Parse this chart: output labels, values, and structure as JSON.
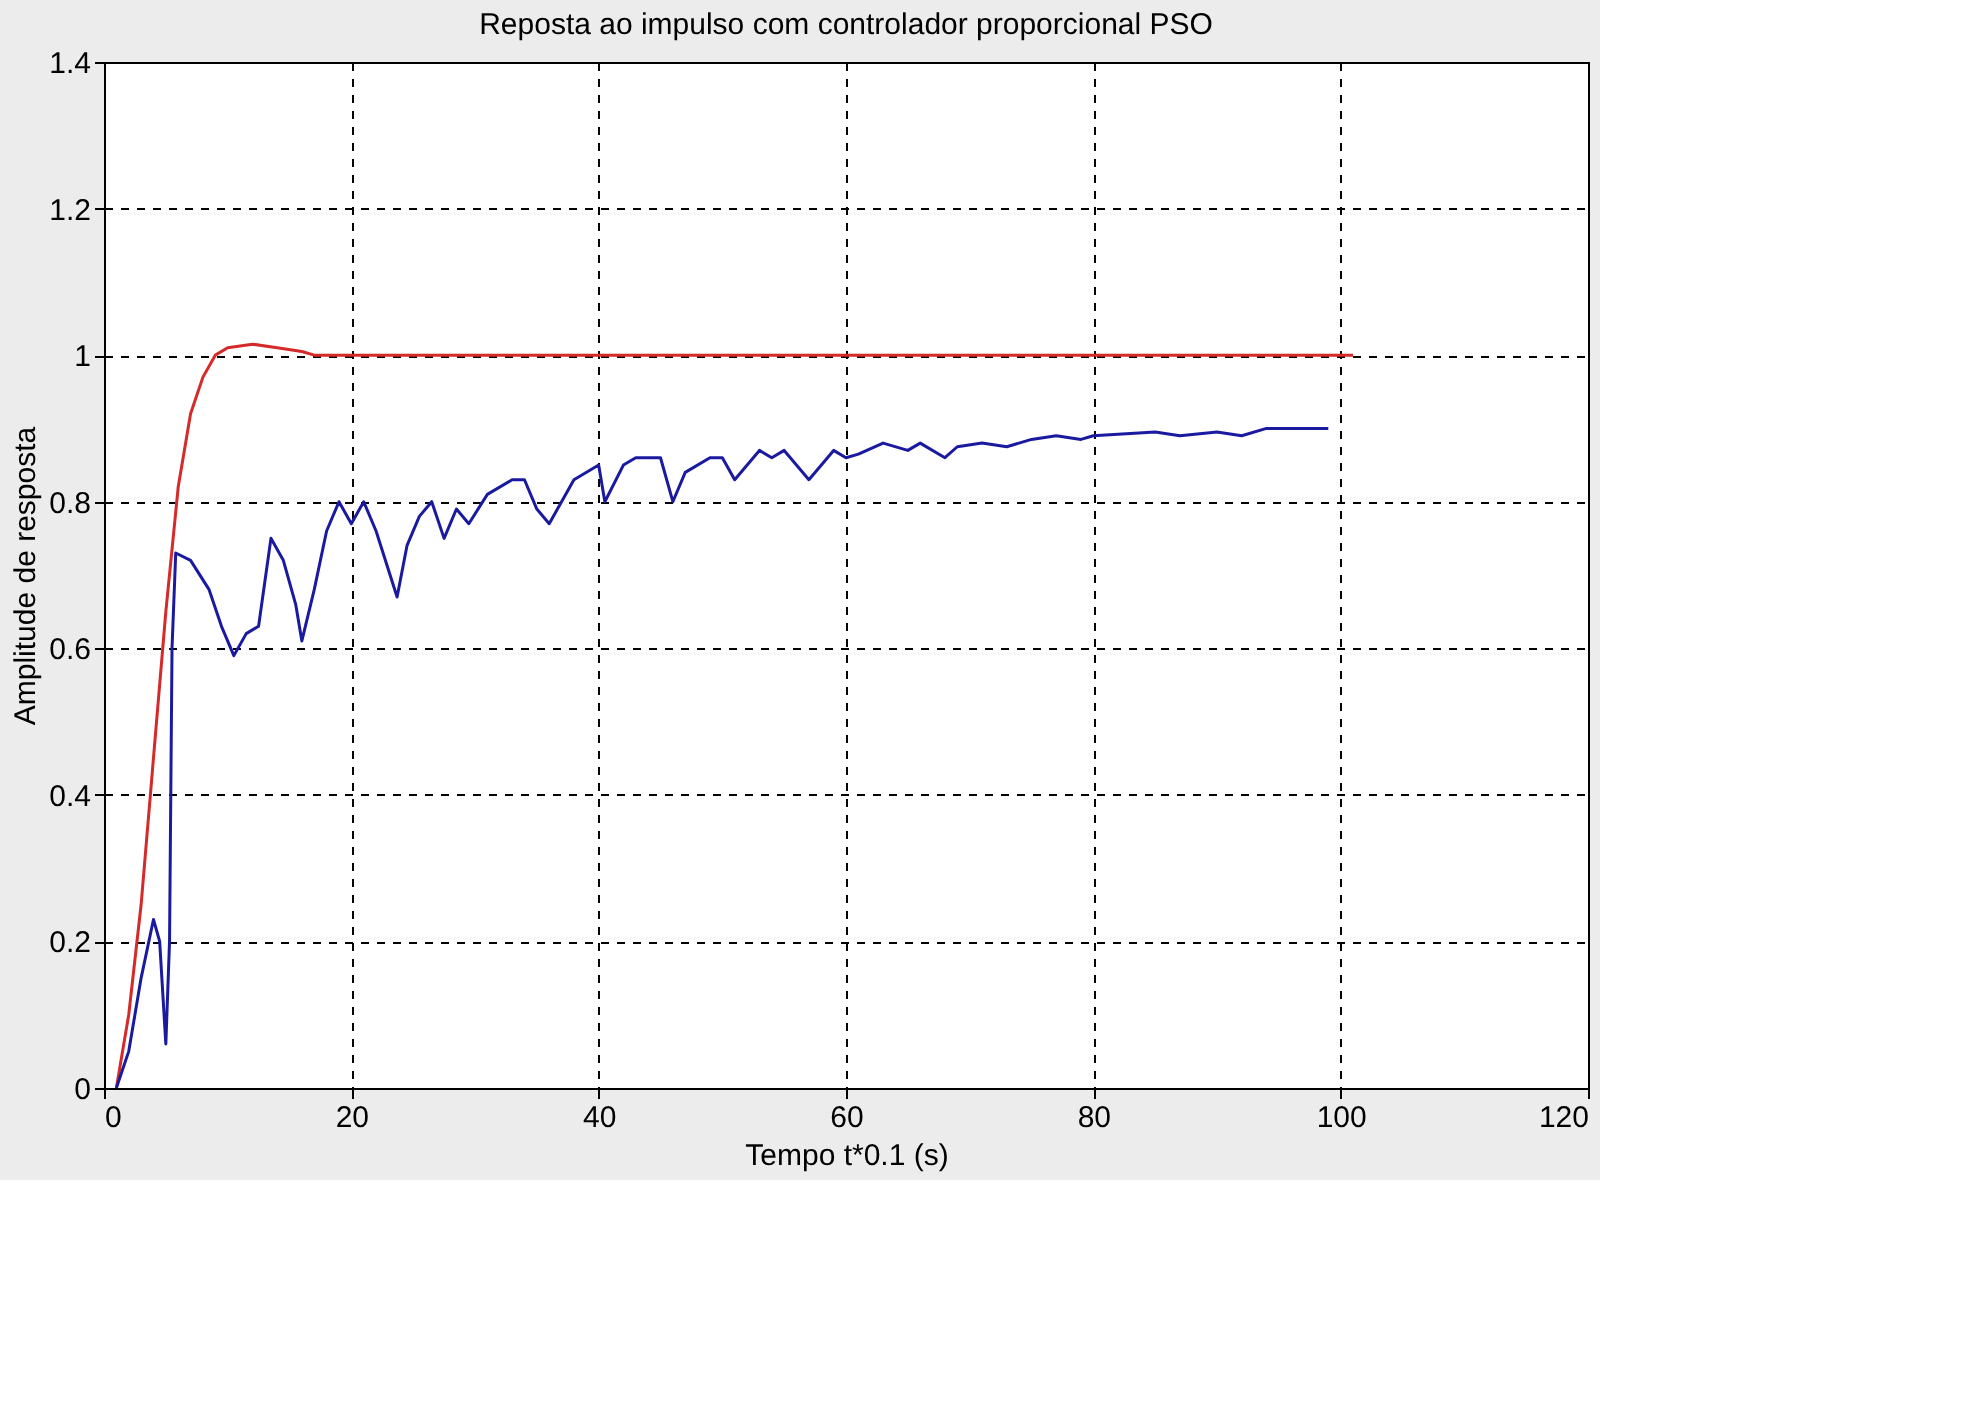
{
  "chart_data": {
    "type": "line",
    "title": "Reposta ao impulso com controlador proporcional PSO",
    "xlabel": "Tempo t*0.1 (s)",
    "ylabel": "Amplitude de resposta",
    "xlim": [
      0,
      120
    ],
    "xticks": [
      0,
      20,
      40,
      60,
      80,
      100,
      120
    ],
    "ylim": [
      0,
      1.4
    ],
    "yticks": [
      0,
      0.2,
      0.4,
      0.6,
      0.8,
      1,
      1.2,
      1.4
    ],
    "grid": true,
    "line_style": "solid",
    "marker": "none",
    "series": [
      {
        "color": "#d42a2a",
        "x": [
          1,
          2,
          3,
          4,
          5,
          6,
          7,
          8,
          9,
          10,
          12,
          14,
          16,
          17,
          101
        ],
        "values": [
          0,
          0.1,
          0.25,
          0.45,
          0.65,
          0.82,
          0.92,
          0.97,
          1.0,
          1.01,
          1.015,
          1.01,
          1.005,
          1.0,
          1.0
        ]
      },
      {
        "color": "#1a1aa0",
        "x": [
          1,
          2,
          3,
          4,
          4.5,
          5,
          5.3,
          5.5,
          5.8,
          7,
          8.5,
          9.5,
          10.5,
          11.5,
          12.5,
          13.5,
          14.5,
          15.5,
          16,
          17,
          18,
          19,
          20,
          21,
          22,
          23.7,
          24.5,
          25.5,
          26.5,
          27.5,
          28.5,
          29.5,
          31,
          33,
          34,
          35,
          36,
          37,
          38,
          40,
          40.5,
          42,
          43,
          45,
          46,
          47,
          49,
          50,
          51,
          53,
          54,
          55,
          57,
          59,
          60,
          61,
          63,
          65,
          66,
          68,
          69,
          71,
          73,
          75,
          77,
          79,
          80,
          85,
          87,
          90,
          92,
          94,
          99
        ],
        "values": [
          0,
          0.05,
          0.15,
          0.23,
          0.2,
          0.06,
          0.2,
          0.6,
          0.73,
          0.72,
          0.68,
          0.63,
          0.59,
          0.62,
          0.63,
          0.75,
          0.72,
          0.66,
          0.61,
          0.68,
          0.76,
          0.8,
          0.77,
          0.8,
          0.76,
          0.67,
          0.74,
          0.78,
          0.8,
          0.75,
          0.79,
          0.77,
          0.81,
          0.83,
          0.83,
          0.79,
          0.77,
          0.8,
          0.83,
          0.85,
          0.8,
          0.85,
          0.86,
          0.86,
          0.8,
          0.84,
          0.86,
          0.86,
          0.83,
          0.87,
          0.86,
          0.87,
          0.83,
          0.87,
          0.86,
          0.865,
          0.88,
          0.87,
          0.88,
          0.86,
          0.875,
          0.88,
          0.875,
          0.885,
          0.89,
          0.885,
          0.89,
          0.895,
          0.89,
          0.895,
          0.89,
          0.9,
          0.9
        ]
      }
    ]
  }
}
